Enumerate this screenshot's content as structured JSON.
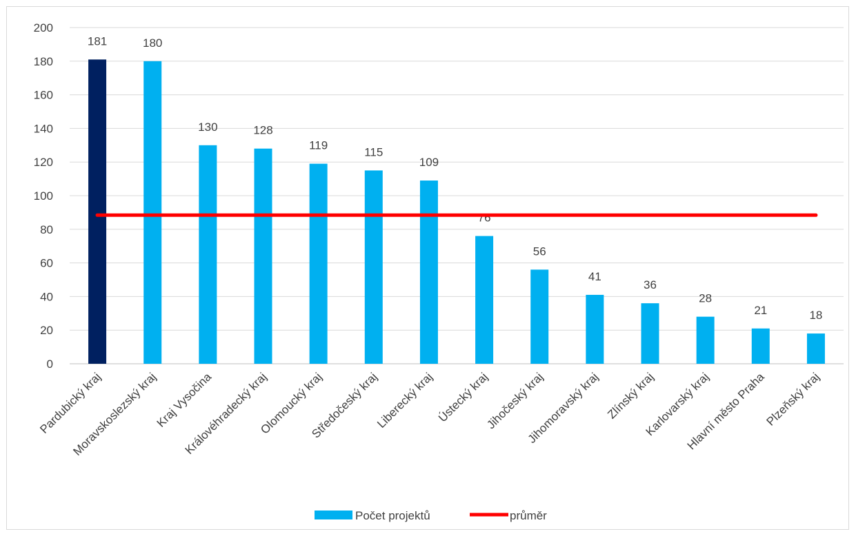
{
  "chart_data": {
    "type": "bar",
    "categories": [
      "Pardubický kraj",
      "Moravskoslezský kraj",
      "Kraj Vysočina",
      "Královéhradecký kraj",
      "Olomoucký kraj",
      "Středočeský kraj",
      "Liberecký kraj",
      "Ústecký kraj",
      "Jihočeský kraj",
      "Jihomoravský kraj",
      "Zlínský kraj",
      "Karlovarský kraj",
      "Hlavní město Praha",
      "Plzeňský kraj"
    ],
    "series": [
      {
        "name": "Počet projektů",
        "type": "bar",
        "values": [
          181,
          180,
          130,
          128,
          119,
          115,
          109,
          76,
          56,
          41,
          36,
          28,
          21,
          18
        ],
        "color": "#00B0F0",
        "highlight_color": "#002060",
        "highlight_index": 0
      },
      {
        "name": "průměr",
        "type": "line",
        "value": 88.4,
        "color": "#FF0000"
      }
    ],
    "data_labels": [
      "181",
      "180",
      "130",
      "128",
      "119",
      "115",
      "109",
      "76",
      "56",
      "41",
      "36",
      "28",
      "21",
      "18"
    ],
    "yticks": [
      "0",
      "20",
      "40",
      "60",
      "80",
      "100",
      "120",
      "140",
      "160",
      "180",
      "200"
    ],
    "ylim": [
      0,
      200
    ],
    "grid": true,
    "legend_position": "bottom",
    "title": "",
    "xlabel": "",
    "ylabel": ""
  }
}
